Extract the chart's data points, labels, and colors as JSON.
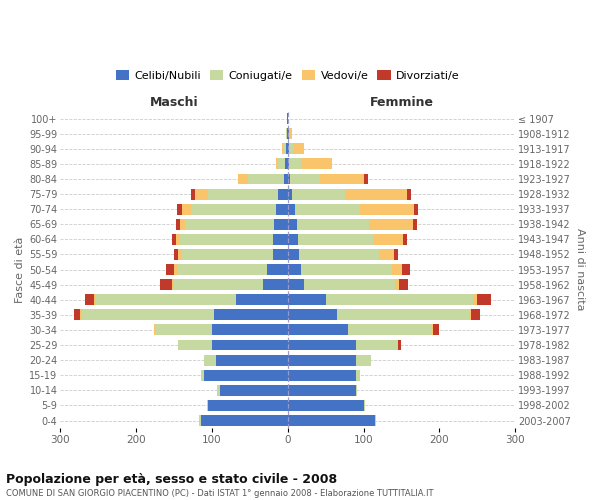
{
  "age_groups": [
    "100+",
    "95-99",
    "90-94",
    "85-89",
    "80-84",
    "75-79",
    "70-74",
    "65-69",
    "60-64",
    "55-59",
    "50-54",
    "45-49",
    "40-44",
    "35-39",
    "30-34",
    "25-29",
    "20-24",
    "15-19",
    "10-14",
    "5-9",
    "0-4"
  ],
  "birth_years": [
    "≤ 1907",
    "1908-1912",
    "1913-1917",
    "1918-1922",
    "1923-1927",
    "1928-1932",
    "1933-1937",
    "1938-1942",
    "1943-1947",
    "1948-1952",
    "1953-1957",
    "1958-1962",
    "1963-1967",
    "1968-1972",
    "1973-1977",
    "1978-1982",
    "1983-1987",
    "1988-1992",
    "1993-1997",
    "1998-2002",
    "2003-2007"
  ],
  "male_celibi": [
    1,
    1,
    2,
    3,
    5,
    13,
    16,
    18,
    20,
    20,
    27,
    32,
    68,
    97,
    100,
    100,
    95,
    110,
    90,
    105,
    115
  ],
  "male_coniugati": [
    0,
    1,
    4,
    10,
    48,
    92,
    112,
    117,
    122,
    120,
    118,
    118,
    185,
    175,
    75,
    45,
    15,
    5,
    3,
    2,
    2
  ],
  "male_vedovi": [
    0,
    0,
    1,
    3,
    12,
    17,
    12,
    7,
    6,
    5,
    5,
    3,
    3,
    2,
    1,
    0,
    0,
    0,
    0,
    0,
    0
  ],
  "male_divorziati": [
    0,
    0,
    0,
    0,
    1,
    6,
    6,
    5,
    5,
    5,
    10,
    15,
    12,
    8,
    1,
    0,
    0,
    0,
    0,
    0,
    0
  ],
  "female_nubili": [
    0,
    1,
    2,
    2,
    3,
    5,
    10,
    12,
    14,
    15,
    18,
    22,
    50,
    65,
    80,
    90,
    90,
    90,
    90,
    100,
    115
  ],
  "female_coniugate": [
    0,
    2,
    5,
    15,
    40,
    70,
    85,
    95,
    100,
    105,
    120,
    120,
    195,
    175,
    110,
    55,
    20,
    5,
    2,
    2,
    2
  ],
  "female_vedove": [
    0,
    2,
    15,
    42,
    58,
    82,
    72,
    58,
    38,
    20,
    13,
    5,
    5,
    2,
    1,
    0,
    0,
    0,
    0,
    0,
    0
  ],
  "female_divorziate": [
    0,
    0,
    0,
    0,
    5,
    5,
    5,
    5,
    5,
    5,
    10,
    12,
    18,
    12,
    8,
    5,
    0,
    0,
    0,
    0,
    0
  ],
  "color_celibi": "#4472C4",
  "color_coniugati": "#C5D9A0",
  "color_vedovi": "#F9C46A",
  "color_divorziati": "#C0392B",
  "title": "Popolazione per età, sesso e stato civile - 2008",
  "subtitle": "COMUNE DI SAN GIORGIO PIACENTINO (PC) - Dati ISTAT 1° gennaio 2008 - Elaborazione TUTTITALIA.IT",
  "label_maschi": "Maschi",
  "label_femmine": "Femmine",
  "ylabel_left": "Fasce di età",
  "ylabel_right": "Anni di nascita",
  "legend_labels": [
    "Celibi/Nubili",
    "Coniugati/e",
    "Vedovi/e",
    "Divorziati/e"
  ],
  "xlim": 300,
  "bg_color": "#ffffff",
  "grid_color": "#cccccc",
  "tick_color": "#666666"
}
